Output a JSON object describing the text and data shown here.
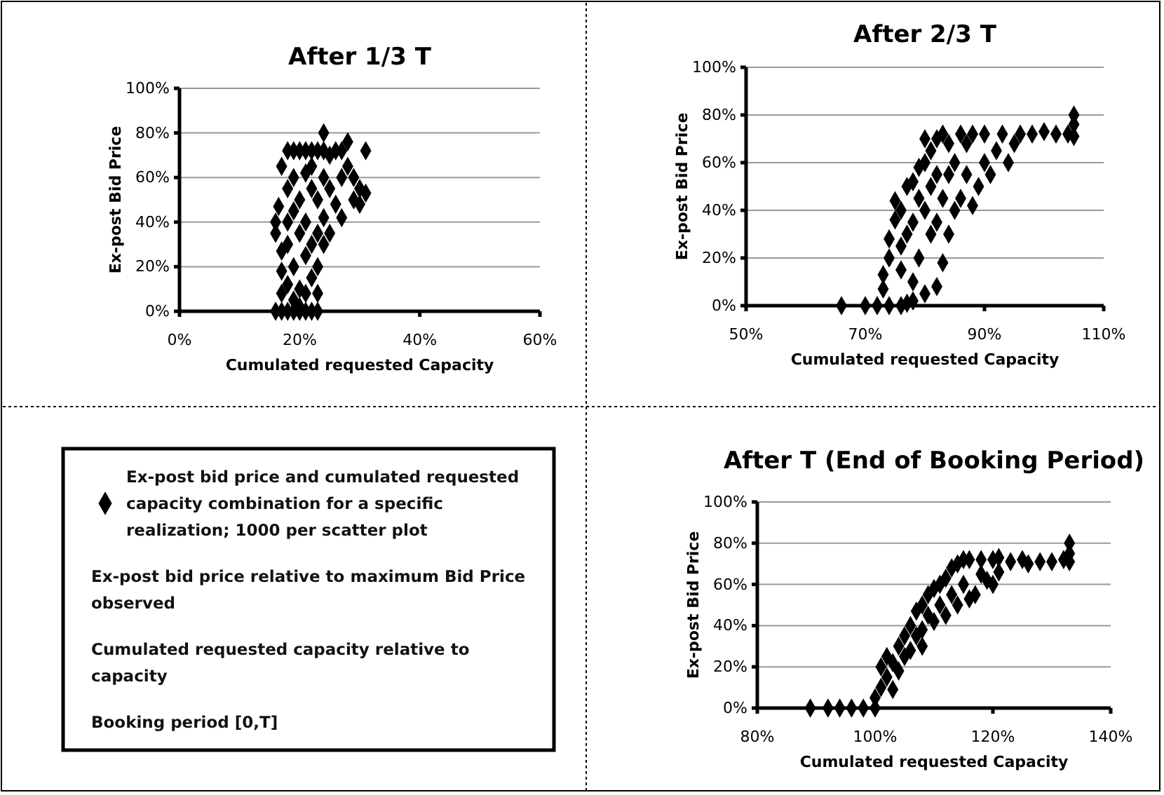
{
  "chart_data": [
    {
      "type": "scatter",
      "title": "After 1/3 T",
      "xlabel": "Cumulated requested Capacity",
      "ylabel": "Ex-post Bid Price",
      "marker": "diamond",
      "grid": "y",
      "xlim": [
        0,
        60
      ],
      "xticks": [
        {
          "value": 0,
          "label": "0%"
        },
        {
          "value": 20,
          "label": "20%"
        },
        {
          "value": 40,
          "label": "40%"
        },
        {
          "value": 60,
          "label": "60%"
        }
      ],
      "ylim": [
        0,
        100
      ],
      "yticks": [
        {
          "value": 0,
          "label": "0%"
        },
        {
          "value": 20,
          "label": "20%"
        },
        {
          "value": 40,
          "label": "40%"
        },
        {
          "value": 60,
          "label": "60%"
        },
        {
          "value": 80,
          "label": "80%"
        },
        {
          "value": 100,
          "label": "100%"
        }
      ],
      "series": [
        {
          "color": "#000000",
          "x": [
            16,
            17,
            18,
            19,
            20,
            21,
            22,
            23,
            16,
            16,
            16.5,
            17,
            17,
            17,
            17,
            18,
            18,
            18,
            18,
            19,
            19,
            19,
            19,
            19,
            20,
            20,
            20,
            20,
            21,
            21,
            21,
            21,
            21,
            22,
            22,
            22,
            22,
            23,
            23,
            23,
            23,
            24,
            24,
            24,
            24,
            24,
            25,
            25,
            25,
            26,
            26,
            27,
            27,
            27,
            28,
            28,
            29,
            29,
            30,
            30,
            31,
            31,
            20,
            22,
            18,
            23
          ],
          "values": [
            0,
            0,
            0,
            0,
            0,
            0,
            0,
            0,
            40,
            35,
            47,
            65,
            27,
            18,
            8,
            72,
            55,
            30,
            12,
            72,
            60,
            45,
            20,
            5,
            72,
            50,
            35,
            10,
            72,
            62,
            40,
            25,
            8,
            72,
            55,
            30,
            15,
            72,
            50,
            20,
            8,
            80,
            72,
            60,
            42,
            30,
            70,
            55,
            35,
            72,
            48,
            72,
            60,
            42,
            76,
            65,
            60,
            50,
            55,
            48,
            72,
            53,
            2,
            65,
            40,
            35
          ]
        }
      ]
    },
    {
      "type": "scatter",
      "title": "After 2/3 T",
      "xlabel": "Cumulated requested Capacity",
      "ylabel": "Ex-post Bid Price",
      "marker": "diamond",
      "grid": "y",
      "xlim": [
        50,
        110
      ],
      "xticks": [
        {
          "value": 50,
          "label": "50%"
        },
        {
          "value": 70,
          "label": "70%"
        },
        {
          "value": 90,
          "label": "90%"
        },
        {
          "value": 110,
          "label": "110%"
        }
      ],
      "ylim": [
        0,
        100
      ],
      "yticks": [
        {
          "value": 0,
          "label": "0%"
        },
        {
          "value": 20,
          "label": "20%"
        },
        {
          "value": 40,
          "label": "40%"
        },
        {
          "value": 60,
          "label": "60%"
        },
        {
          "value": 80,
          "label": "80%"
        },
        {
          "value": 100,
          "label": "100%"
        }
      ],
      "series": [
        {
          "color": "#000000",
          "x": [
            66,
            70,
            72,
            74,
            76,
            77,
            78,
            73,
            73,
            74,
            74,
            75,
            75,
            76,
            76,
            76,
            77,
            77,
            78,
            78,
            78,
            79,
            79,
            79,
            80,
            80,
            80,
            80,
            81,
            81,
            81,
            82,
            82,
            82,
            82,
            83,
            83,
            83,
            84,
            84,
            84,
            85,
            85,
            86,
            86,
            87,
            87,
            88,
            88,
            89,
            90,
            90,
            91,
            92,
            93,
            94,
            95,
            96,
            98,
            100,
            102,
            104,
            105,
            105,
            105
          ],
          "values": [
            0,
            0,
            0,
            0,
            0,
            1,
            2,
            7,
            13,
            28,
            20,
            36,
            44,
            15,
            25,
            40,
            30,
            50,
            10,
            35,
            52,
            58,
            20,
            45,
            70,
            5,
            40,
            60,
            30,
            50,
            65,
            8,
            35,
            55,
            70,
            18,
            45,
            72,
            30,
            55,
            68,
            40,
            60,
            72,
            45,
            55,
            68,
            42,
            72,
            50,
            60,
            72,
            55,
            65,
            72,
            60,
            68,
            72,
            72,
            73,
            72,
            72,
            76,
            80,
            71
          ]
        }
      ]
    },
    {
      "type": "other",
      "annotations": [
        "Ex-post bid price and cumulated requested capacity combination for a specific realization; 1000 per scatter plot",
        "Ex-post bid price relative to maximum Bid Price observed",
        "Cumulated requested capacity relative to capacity",
        "Booking period [0,T]"
      ]
    },
    {
      "type": "scatter",
      "title": "After T (End of Booking Period)",
      "xlabel": "Cumulated requested Capacity",
      "ylabel": "Ex-post Bid Price",
      "marker": "diamond",
      "grid": "y",
      "xlim": [
        80,
        140
      ],
      "xticks": [
        {
          "value": 80,
          "label": "80%"
        },
        {
          "value": 100,
          "label": "100%"
        },
        {
          "value": 120,
          "label": "120%"
        },
        {
          "value": 140,
          "label": "140%"
        }
      ],
      "ylim": [
        0,
        100
      ],
      "yticks": [
        {
          "value": 0,
          "label": "0%"
        },
        {
          "value": 20,
          "label": "20%"
        },
        {
          "value": 40,
          "label": "40%"
        },
        {
          "value": 60,
          "label": "60%"
        },
        {
          "value": 80,
          "label": "80%"
        },
        {
          "value": 100,
          "label": "100%"
        }
      ],
      "series": [
        {
          "color": "#000000",
          "x": [
            89,
            92,
            94,
            96,
            98,
            100,
            100,
            101,
            101,
            102,
            102,
            103,
            103,
            104,
            104,
            105,
            105,
            106,
            106,
            107,
            107,
            108,
            108,
            108,
            109,
            109,
            110,
            110,
            111,
            111,
            112,
            112,
            113,
            113,
            114,
            114,
            115,
            115,
            116,
            116,
            117,
            118,
            118,
            119,
            120,
            120,
            121,
            121,
            123,
            125,
            126,
            128,
            130,
            132,
            133,
            133,
            133
          ],
          "values": [
            0,
            0,
            0,
            0,
            0,
            0,
            5,
            10,
            20,
            15,
            25,
            9,
            22,
            30,
            18,
            35,
            25,
            40,
            28,
            47,
            35,
            50,
            38,
            30,
            55,
            45,
            58,
            42,
            60,
            50,
            63,
            45,
            68,
            55,
            70,
            50,
            72,
            60,
            72,
            53,
            55,
            72,
            65,
            62,
            72,
            60,
            73,
            66,
            71,
            72,
            70,
            71,
            71,
            72,
            80,
            75,
            71
          ]
        }
      ]
    }
  ]
}
